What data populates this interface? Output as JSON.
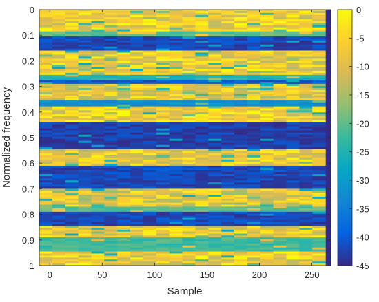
{
  "chart_data": {
    "type": "heatmap",
    "xlabel": "Sample",
    "ylabel": "Normalized  frequency",
    "xlim": [
      -10,
      268
    ],
    "ylim": [
      0,
      1
    ],
    "y_direction": "reversed",
    "x_ticks": [
      0,
      50,
      100,
      150,
      200,
      250
    ],
    "x_tick_labels": [
      "0",
      "50",
      "100",
      "150",
      "200",
      "250"
    ],
    "y_ticks": [
      0,
      0.1,
      0.2,
      0.3,
      0.4,
      0.5,
      0.6,
      0.7,
      0.8,
      0.9,
      1
    ],
    "y_tick_labels": [
      "0",
      "0.1",
      "0.2",
      "0.3",
      "0.4",
      "0.5",
      "0.6",
      "0.7",
      "0.8",
      "0.9",
      "1"
    ],
    "colorbar": {
      "colormap": "parula",
      "range": [
        -45,
        0
      ],
      "ticks": [
        0,
        -5,
        -10,
        -15,
        -20,
        -25,
        -30,
        -35,
        -40,
        -45
      ],
      "tick_labels": [
        "0",
        "-5",
        "-10",
        "-15",
        "-20",
        "-25",
        "-30",
        "-35",
        "-40",
        "-45"
      ],
      "colors": [
        "#352a87",
        "#0363e1",
        "#1485d4",
        "#06a7c6",
        "#38b99e",
        "#92bf73",
        "#d9ba56",
        "#fcce2e",
        "#f9fb0e"
      ]
    },
    "columns": 22,
    "sample_spacing": 12.4,
    "bands": [
      {
        "y": [
          0.0,
          0.005
        ],
        "level": -8
      },
      {
        "y": [
          0.005,
          0.085
        ],
        "level": -6
      },
      {
        "y": [
          0.085,
          0.105
        ],
        "level": -20
      },
      {
        "y": [
          0.105,
          0.16
        ],
        "level": -42
      },
      {
        "y": [
          0.16,
          0.255
        ],
        "level": -7
      },
      {
        "y": [
          0.255,
          0.275
        ],
        "level": -25
      },
      {
        "y": [
          0.275,
          0.29
        ],
        "level": -40
      },
      {
        "y": [
          0.29,
          0.355
        ],
        "level": -8
      },
      {
        "y": [
          0.355,
          0.378
        ],
        "level": -32
      },
      {
        "y": [
          0.378,
          0.44
        ],
        "level": -6
      },
      {
        "y": [
          0.44,
          0.545
        ],
        "level": -43
      },
      {
        "y": [
          0.545,
          0.61
        ],
        "level": -7
      },
      {
        "y": [
          0.61,
          0.7
        ],
        "level": -42
      },
      {
        "y": [
          0.7,
          0.77
        ],
        "level": -8
      },
      {
        "y": [
          0.77,
          0.79
        ],
        "level": -20
      },
      {
        "y": [
          0.79,
          0.845
        ],
        "level": -42
      },
      {
        "y": [
          0.845,
          0.89
        ],
        "level": -7
      },
      {
        "y": [
          0.89,
          0.945
        ],
        "level": -22
      },
      {
        "y": [
          0.945,
          1.0
        ],
        "level": -6
      }
    ]
  }
}
